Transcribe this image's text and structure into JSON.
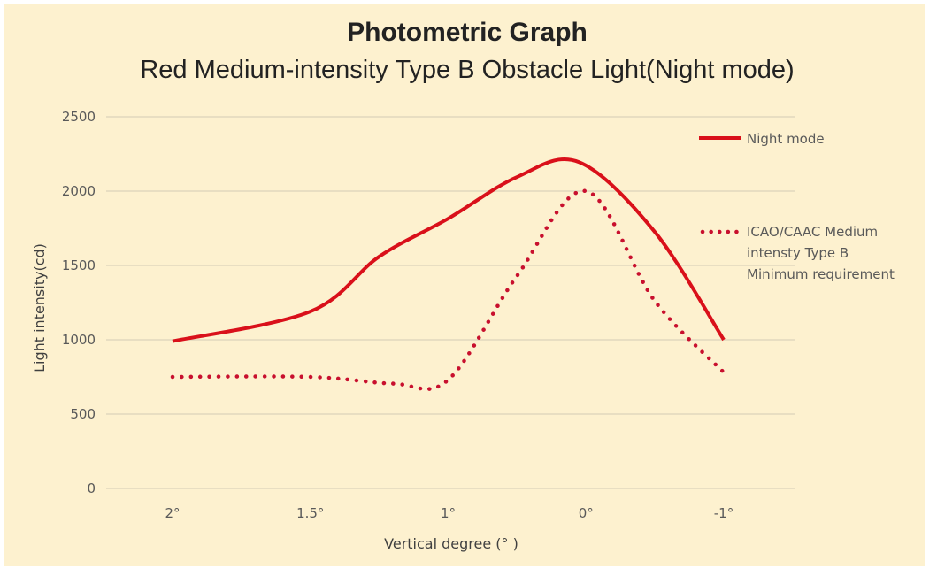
{
  "chart_data": {
    "type": "line",
    "title": "Photometric Graph",
    "subtitle": "Red Medium-intensity Type B Obstacle Light(Night mode)",
    "xlabel": "Vertical degree (°  )",
    "ylabel": "Light intensity(cd)",
    "categories": [
      "2°",
      "1.5°",
      "1°",
      "0°",
      "-1°"
    ],
    "ylim": [
      0,
      2500
    ],
    "yticks": [
      "0",
      "500",
      "1000",
      "1500",
      "2000",
      "2500"
    ],
    "ytick_values": [
      0,
      500,
      1000,
      1500,
      2000,
      2500
    ],
    "grid": true,
    "legend_position": "right",
    "smooth": true,
    "series": [
      {
        "name": "Night mode",
        "style": "solid",
        "color": "#d9101a",
        "values": [
          990,
          1190,
          1815,
          2190,
          1000
        ],
        "shape_samples": [
          [
            0,
            990
          ],
          [
            1,
            1190
          ],
          [
            1.5,
            1560
          ],
          [
            2,
            1815
          ],
          [
            2.5,
            2095
          ],
          [
            2.95,
            2195
          ],
          [
            3.5,
            1725
          ],
          [
            4,
            1000
          ]
        ]
      },
      {
        "name": "ICAO/CAAC Medium intensty Type B Minimum requirement",
        "legend_lines": [
          "ICAO/CAAC Medium",
          "intensty Type B",
          "Minimum requirement"
        ],
        "style": "dotted",
        "color": "#c8102e",
        "values": [
          750,
          750,
          730,
          2000,
          780
        ],
        "shape_samples": [
          [
            0,
            750
          ],
          [
            1,
            750
          ],
          [
            1.6,
            705
          ],
          [
            2,
            730
          ],
          [
            2.5,
            1430
          ],
          [
            3,
            2000
          ],
          [
            3.5,
            1260
          ],
          [
            4,
            780
          ]
        ]
      }
    ]
  }
}
